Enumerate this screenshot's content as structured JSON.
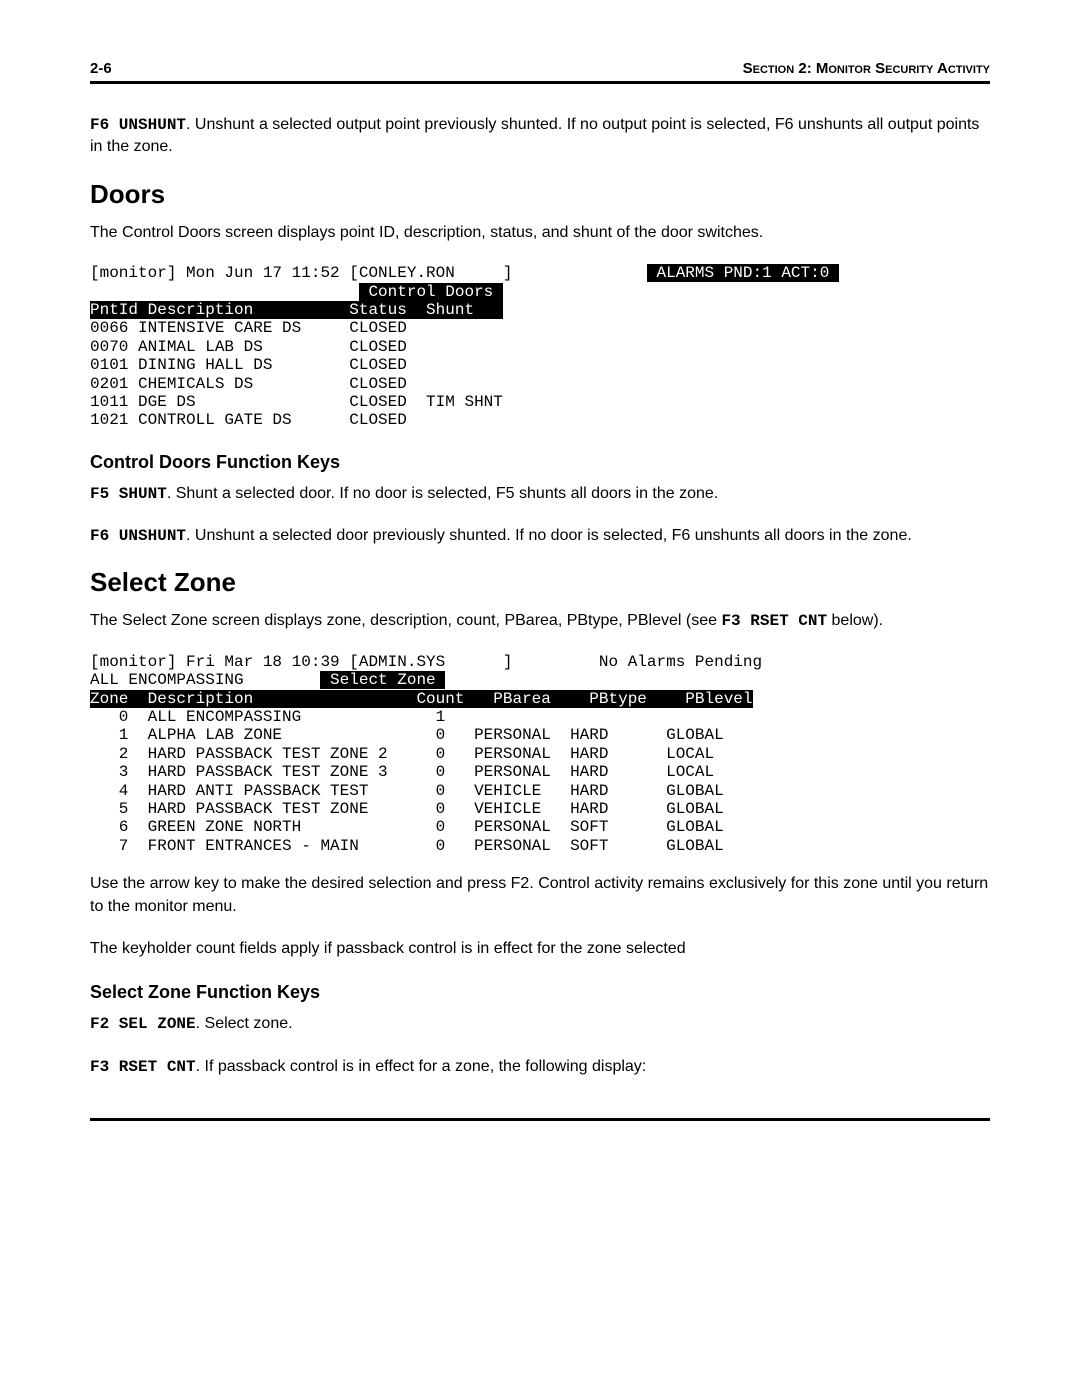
{
  "header": {
    "page_number": "2-6",
    "section_label": "Section 2: Monitor Security Activity"
  },
  "intro_para": {
    "key": "F6 UNSHUNT",
    "text": ".  Unshunt a selected output point previously shunted.  If no output point is selected, F6 unshunts all output points in the zone."
  },
  "doors": {
    "heading": "Doors",
    "intro": "The Control Doors screen displays point ID, description, status, and shunt of the door switches.",
    "terminal": {
      "top_left": "[monitor] Mon Jun 17 11:52 [CONLEY.RON     ]",
      "top_right": "ALARMS PND:1 ACT:0",
      "title": "Control Doors",
      "columns": "PntId Description          Status  Shunt   ",
      "rows": [
        {
          "pntid": "0066",
          "desc": "INTENSIVE CARE DS",
          "status": "CLOSED",
          "shunt": ""
        },
        {
          "pntid": "0070",
          "desc": "ANIMAL LAB DS",
          "status": "CLOSED",
          "shunt": ""
        },
        {
          "pntid": "0101",
          "desc": "DINING HALL DS",
          "status": "CLOSED",
          "shunt": ""
        },
        {
          "pntid": "0201",
          "desc": "CHEMICALS DS",
          "status": "CLOSED",
          "shunt": ""
        },
        {
          "pntid": "1011",
          "desc": "DGE DS",
          "status": "CLOSED",
          "shunt": "TIM SHNT"
        },
        {
          "pntid": "1021",
          "desc": "CONTROLL GATE DS",
          "status": "CLOSED",
          "shunt": ""
        }
      ]
    },
    "fkeys_heading": "Control Doors Function Keys",
    "f5": {
      "key": "F5 SHUNT",
      "text": ".  Shunt a selected door.  If no door is selected, F5 shunts all doors in the zone."
    },
    "f6": {
      "key": "F6 UNSHUNT",
      "text": ".  Unshunt a selected door previously shunted.  If no door is selected, F6 unshunts all doors in the zone."
    }
  },
  "select_zone": {
    "heading": "Select Zone",
    "intro_pre": "The Select Zone screen displays zone, description, count, PBarea, PBtype, PBlevel (see ",
    "intro_key": "F3 RSET CNT",
    "intro_post": " below).",
    "terminal": {
      "top_left": "[monitor] Fri Mar 18 10:39 [ADMIN.SYS      ]",
      "top_right": "No Alarms Pending",
      "subtitle_left": "ALL ENCOMPASSING",
      "subtitle_center": "Select Zone",
      "columns": "Zone  Description                 Count   PBarea    PBtype    PBlevel",
      "rows": [
        {
          "zone": "0",
          "desc": "ALL ENCOMPASSING",
          "count": "1",
          "pbarea": "",
          "pbtype": "",
          "pblevel": ""
        },
        {
          "zone": "1",
          "desc": "ALPHA LAB ZONE",
          "count": "0",
          "pbarea": "PERSONAL",
          "pbtype": "HARD",
          "pblevel": "GLOBAL"
        },
        {
          "zone": "2",
          "desc": "HARD PASSBACK TEST ZONE 2",
          "count": "0",
          "pbarea": "PERSONAL",
          "pbtype": "HARD",
          "pblevel": "LOCAL"
        },
        {
          "zone": "3",
          "desc": "HARD PASSBACK TEST ZONE 3",
          "count": "0",
          "pbarea": "PERSONAL",
          "pbtype": "HARD",
          "pblevel": "LOCAL"
        },
        {
          "zone": "4",
          "desc": "HARD ANTI PASSBACK TEST",
          "count": "0",
          "pbarea": "VEHICLE",
          "pbtype": "HARD",
          "pblevel": "GLOBAL"
        },
        {
          "zone": "5",
          "desc": "HARD PASSBACK TEST ZONE",
          "count": "0",
          "pbarea": "VEHICLE",
          "pbtype": "HARD",
          "pblevel": "GLOBAL"
        },
        {
          "zone": "6",
          "desc": "GREEN ZONE NORTH",
          "count": "0",
          "pbarea": "PERSONAL",
          "pbtype": "SOFT",
          "pblevel": "GLOBAL"
        },
        {
          "zone": "7",
          "desc": "FRONT ENTRANCES - MAIN",
          "count": "0",
          "pbarea": "PERSONAL",
          "pbtype": "SOFT",
          "pblevel": "GLOBAL"
        }
      ]
    },
    "post1": "Use the arrow key to make the desired selection and press F2.  Control activity remains exclusively for this zone until you return to the monitor menu.",
    "post2": "The keyholder count fields apply if passback control is in effect for the zone selected",
    "fkeys_heading": "Select Zone Function Keys",
    "f2": {
      "key": "F2 SEL ZONE",
      "text": ".  Select zone."
    },
    "f3": {
      "key": "F3 RSET CNT",
      "text": ".  If passback control is in effect for a zone, the following display:"
    }
  }
}
